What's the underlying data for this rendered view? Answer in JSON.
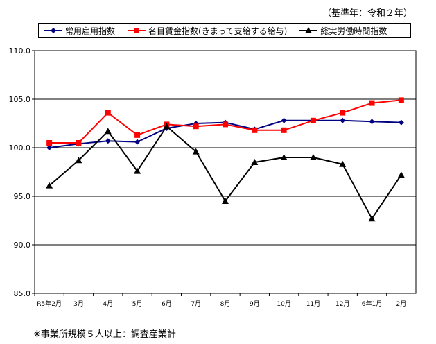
{
  "base_year_note": "（基準年：令和２年）",
  "footnote": "※事業所規模５人以上：調査産業計",
  "colors": {
    "series1": "#000080",
    "series2": "#ff0000",
    "series3": "#000000"
  },
  "chart_data": {
    "type": "line",
    "title": "",
    "xlabel": "",
    "ylabel": "",
    "ylim": [
      85.0,
      110.0
    ],
    "yticks": [
      "85.0",
      "90.0",
      "95.0",
      "100.0",
      "105.0",
      "110.0"
    ],
    "grid": true,
    "legend_position": "top",
    "categories": [
      "R5年2月",
      "3月",
      "4月",
      "5月",
      "6月",
      "7月",
      "8月",
      "9月",
      "10月",
      "11月",
      "12月",
      "6年1月",
      "2月"
    ],
    "series": [
      {
        "name": "常用雇用指数",
        "marker": "diamond",
        "color": "#000080",
        "values": [
          100.0,
          100.4,
          100.7,
          100.6,
          102.0,
          102.5,
          102.6,
          101.9,
          102.8,
          102.8,
          102.8,
          102.7,
          102.6
        ]
      },
      {
        "name": "名目賃金指数(きまって支給する給与)",
        "marker": "square",
        "color": "#ff0000",
        "values": [
          100.5,
          100.5,
          103.6,
          101.3,
          102.4,
          102.2,
          102.4,
          101.8,
          101.8,
          102.8,
          103.6,
          104.6,
          104.9
        ]
      },
      {
        "name": "総実労働時間指数",
        "marker": "triangle",
        "color": "#000000",
        "values": [
          96.1,
          98.7,
          101.7,
          97.6,
          102.2,
          99.6,
          94.5,
          98.5,
          99.0,
          99.0,
          98.3,
          92.7,
          97.2
        ]
      }
    ]
  }
}
